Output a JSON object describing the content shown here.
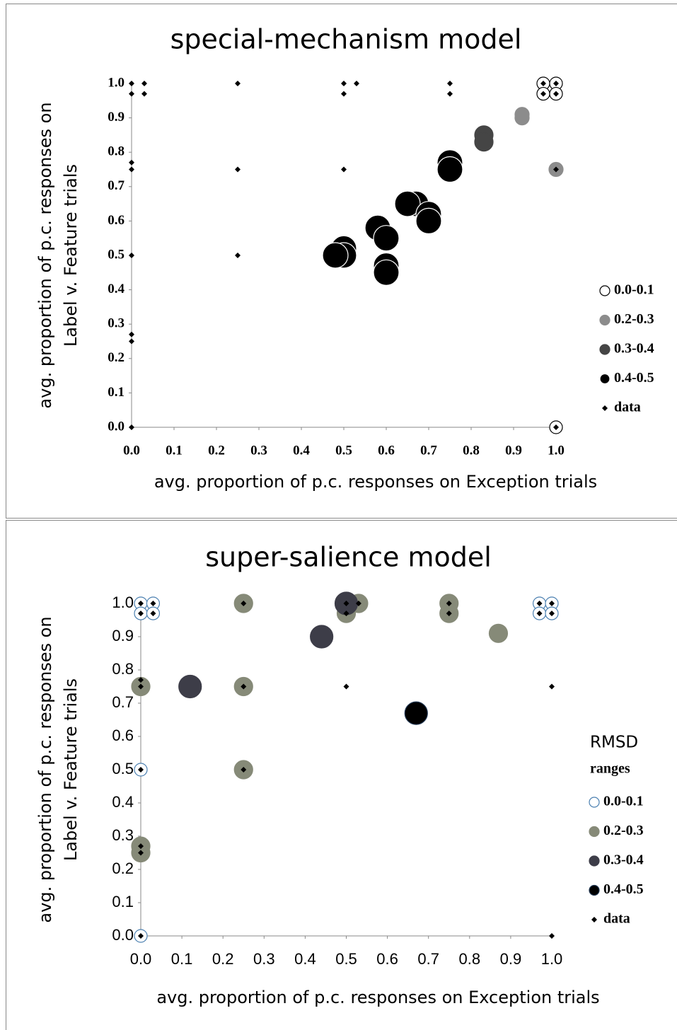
{
  "chart_data": [
    {
      "type": "scatter",
      "title": "special-mechanism model",
      "xlabel": "avg. proportion of p.c. responses on Exception trials",
      "ylabel": [
        "avg. proportion of p.c. responses on",
        "Label v. Feature trials"
      ],
      "xlim": [
        0,
        1
      ],
      "ylim": [
        0,
        1
      ],
      "xticks": [
        {
          "value": 0,
          "label": "0.0"
        },
        0.1,
        0.2,
        0.3,
        0.4,
        0.5,
        0.6,
        0.7,
        0.8,
        0.9,
        {
          "value": 1,
          "label": "1.0"
        }
      ],
      "yticks": [
        {
          "value": 0,
          "label": "0.0"
        },
        0.1,
        0.2,
        0.3,
        0.4,
        0.5,
        0.6,
        0.7,
        0.8,
        0.9,
        {
          "value": 1,
          "label": "1.0"
        }
      ],
      "series": [
        {
          "name": "0.0-0.1",
          "marker": "circle",
          "color": "#ffffff",
          "edge": "#000000",
          "x": [
            0.97,
            1.0,
            0.97,
            1.0,
            1.0
          ],
          "y": [
            1.0,
            1.0,
            0.97,
            0.97,
            0.0
          ]
        },
        {
          "name": "0.2-0.3",
          "marker": "circle",
          "color": "#8c8c8c",
          "edge": "#8c8c8c",
          "x": [
            0.92,
            0.92,
            1.0
          ],
          "y": [
            0.91,
            0.9,
            0.75
          ]
        },
        {
          "name": "0.3-0.4",
          "marker": "circle",
          "color": "#454545",
          "edge": "#454545",
          "x": [
            0.83,
            0.83
          ],
          "y": [
            0.85,
            0.83
          ]
        },
        {
          "name": "0.4-0.5",
          "marker": "circle",
          "color": "#000000",
          "edge": "#ffffff",
          "x": [
            0.75,
            0.75,
            0.67,
            0.65,
            0.7,
            0.7,
            0.58,
            0.6,
            0.6,
            0.6,
            0.5,
            0.5,
            0.48
          ],
          "y": [
            0.77,
            0.75,
            0.65,
            0.65,
            0.62,
            0.6,
            0.58,
            0.55,
            0.47,
            0.45,
            0.52,
            0.5,
            0.5
          ]
        },
        {
          "name": "data",
          "marker": "diamond",
          "color": "#000000",
          "edge": "#000000",
          "x": [
            0,
            0,
            0,
            0,
            0,
            0,
            0,
            0,
            0.03,
            0.03,
            0.25,
            0.25,
            0.25,
            0.5,
            0.5,
            0.5,
            0.53,
            0.75,
            0.75,
            0.97,
            0.97,
            1.0,
            1.0,
            1.0,
            1.0
          ],
          "y": [
            1.0,
            0.97,
            0.77,
            0.75,
            0.5,
            0.27,
            0.25,
            0.0,
            1.0,
            0.97,
            1.0,
            0.75,
            0.5,
            1.0,
            0.97,
            0.75,
            1.0,
            1.0,
            0.97,
            1.0,
            0.97,
            1.0,
            0.97,
            0.75,
            0.0
          ]
        }
      ]
    },
    {
      "type": "scatter",
      "title": "super-salience model",
      "xlabel": "avg. proportion of p.c. responses on Exception trials",
      "ylabel": [
        "avg. proportion of p.c. responses on",
        "Label v. Feature trials"
      ],
      "legend_title": [
        "RMSD",
        "ranges"
      ],
      "xlim": [
        0,
        1
      ],
      "ylim": [
        0,
        1
      ],
      "xticks": [
        {
          "value": 0,
          "label": "0.0"
        },
        0.1,
        0.2,
        0.3,
        0.4,
        0.5,
        0.6,
        0.7,
        0.8,
        0.9,
        {
          "value": 1,
          "label": "1.0"
        }
      ],
      "yticks": [
        {
          "value": 0,
          "label": "0.0"
        },
        0.1,
        0.2,
        0.3,
        0.4,
        0.5,
        0.6,
        0.7,
        0.8,
        0.9,
        {
          "value": 1,
          "label": "1.0"
        }
      ],
      "series": [
        {
          "name": "0.0-0.1",
          "marker": "circle",
          "color": "#ffffff",
          "edge": "#4a7fb0",
          "x": [
            0,
            0.03,
            0,
            0.03,
            0.97,
            1.0,
            0.97,
            1.0,
            0,
            0
          ],
          "y": [
            1.0,
            1.0,
            0.97,
            0.97,
            1.0,
            1.0,
            0.97,
            0.97,
            0.5,
            0.0
          ]
        },
        {
          "name": "0.2-0.3",
          "marker": "circle",
          "color": "#868a78",
          "edge": "#868a78",
          "x": [
            0.25,
            0,
            0.25,
            0.25,
            0,
            0,
            0.5,
            0.53,
            0.75,
            0.75,
            0.87
          ],
          "y": [
            1.0,
            0.75,
            0.75,
            0.5,
            0.27,
            0.25,
            0.97,
            1.0,
            1.0,
            0.97,
            0.91
          ]
        },
        {
          "name": "0.3-0.4",
          "marker": "circle",
          "color": "#3d3d48",
          "edge": "#3d3d48",
          "x": [
            0.5,
            0.44,
            0.12
          ],
          "y": [
            1.0,
            0.9,
            0.75
          ]
        },
        {
          "name": "0.4-0.5",
          "marker": "circle",
          "color": "#000000",
          "edge": "#1f3550",
          "x": [
            0.67
          ],
          "y": [
            0.67
          ]
        },
        {
          "name": "data",
          "marker": "diamond",
          "color": "#000000",
          "edge": "#000000",
          "x": [
            0,
            0,
            0.03,
            0.03,
            0,
            0,
            0,
            0,
            0,
            0,
            0.25,
            0.25,
            0.25,
            0.5,
            0.5,
            0.53,
            0.5,
            0.75,
            0.75,
            0.97,
            0.97,
            1.0,
            1.0,
            1.0,
            1.0
          ],
          "y": [
            1.0,
            0.97,
            1.0,
            0.97,
            0.77,
            0.75,
            0.5,
            0.27,
            0.25,
            0.0,
            1.0,
            0.75,
            0.5,
            1.0,
            0.97,
            1.0,
            0.75,
            1.0,
            0.97,
            1.0,
            0.97,
            1.0,
            0.97,
            0.75,
            0.0
          ]
        }
      ]
    }
  ]
}
